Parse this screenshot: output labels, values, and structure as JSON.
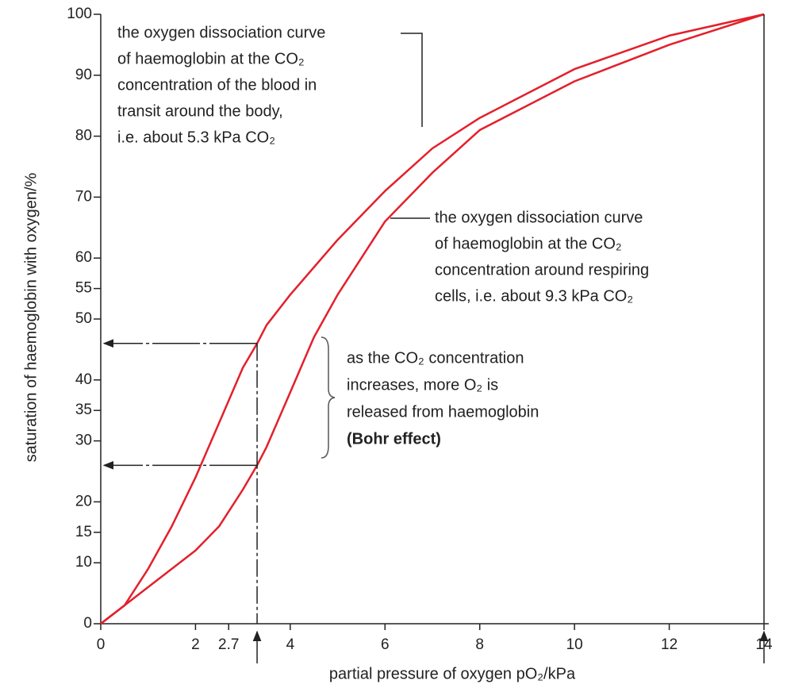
{
  "chart_data": {
    "type": "line",
    "x_label": "partial pressure of oxygen pO₂/kPa",
    "y_label": "saturation of haemoglobin with oxygen/%",
    "xlim": [
      0,
      14
    ],
    "ylim": [
      0,
      100
    ],
    "xticks": [
      0,
      2,
      2.7,
      4,
      6,
      8,
      10,
      12,
      14
    ],
    "yticks": [
      0,
      10,
      15,
      20,
      30,
      35,
      40,
      50,
      55,
      60,
      70,
      80,
      90,
      100
    ],
    "series": [
      {
        "color": "#e3202b",
        "x": [
          0,
          0.5,
          1,
          1.5,
          2,
          2.5,
          3,
          3.3,
          3.5,
          4,
          5,
          6,
          7,
          8,
          10,
          12,
          14
        ],
        "values": [
          0,
          3,
          9,
          16,
          24,
          33,
          42,
          46,
          49,
          54,
          63,
          71,
          78,
          83,
          91,
          96.5,
          100
        ]
      },
      {
        "color": "#e3202b",
        "x": [
          0,
          1,
          2,
          2.5,
          3,
          3.3,
          3.5,
          4,
          4.5,
          5,
          6,
          7,
          8,
          10,
          12,
          14
        ],
        "values": [
          0,
          6,
          12,
          16,
          22,
          26,
          29,
          38,
          47,
          54,
          66,
          74,
          81,
          89,
          95,
          100
        ]
      }
    ],
    "annotations": [
      {
        "lines": [
          "the oxygen dissociation curve",
          "of haemoglobin at the CO₂",
          "concentration of the blood in",
          "transit around the body,",
          "i.e. about 5.3 kPa CO₂"
        ]
      },
      {
        "lines": [
          "the oxygen dissociation curve",
          "of haemoglobin at the CO₂",
          "concentration around respiring",
          "cells, i.e. about 9.3 kPa CO₂"
        ]
      },
      {
        "lines": [
          "as the CO₂ concentration",
          "increases, more O₂ is",
          "released from haemoglobin",
          "(Bohr effect)"
        ]
      }
    ]
  }
}
